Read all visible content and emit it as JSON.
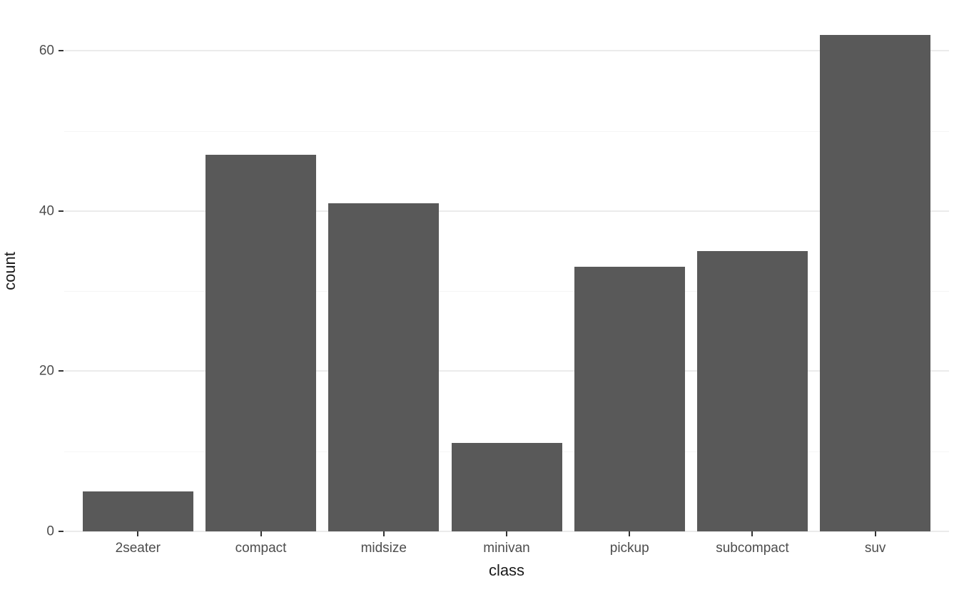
{
  "chart_data": {
    "type": "bar",
    "title": "",
    "xlabel": "class",
    "ylabel": "count",
    "categories": [
      "2seater",
      "compact",
      "midsize",
      "minivan",
      "pickup",
      "subcompact",
      "suv"
    ],
    "values": [
      5,
      47,
      41,
      11,
      33,
      35,
      62
    ],
    "yticks": [
      0,
      20,
      40,
      60
    ],
    "yticks_minor": [
      10,
      30,
      50
    ],
    "ylim": [
      0,
      65.1
    ],
    "grid": "horizontal-major-and-minor",
    "legend": "none",
    "colors": {
      "bar_fill": "#595959",
      "background": "#ffffff",
      "major_gridline": "#ebebeb",
      "minor_gridline": "#f5f5f5",
      "tick_label": "#4d4d4d",
      "axis_title": "#1a1a1a",
      "tick_mark": "#333333"
    }
  }
}
